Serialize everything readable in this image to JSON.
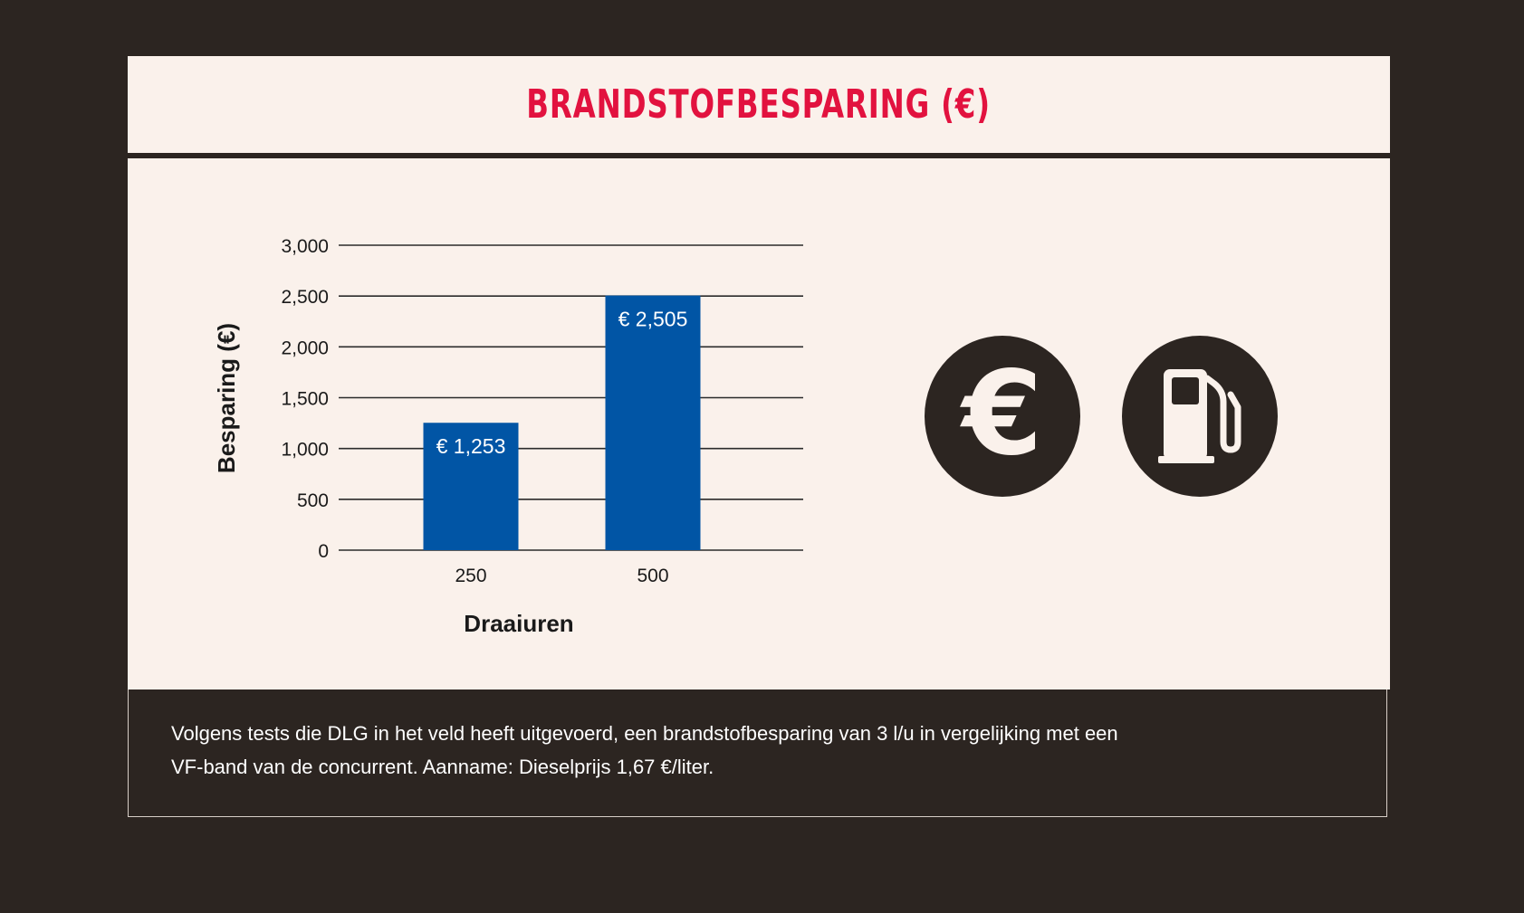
{
  "header": {
    "title": "BRANDSTOFBESPARING (€)"
  },
  "chart_data": {
    "type": "bar",
    "title": "",
    "xlabel": "Draaiuren",
    "ylabel": "Besparing (€)",
    "categories": [
      "250",
      "500"
    ],
    "values": [
      1253,
      2505
    ],
    "data_labels": [
      "€ 1,253",
      "€ 2,505"
    ],
    "ylim": [
      0,
      3000
    ],
    "yticks": [
      0,
      500,
      1000,
      1500,
      2000,
      2500,
      3000
    ],
    "ytick_labels": [
      "0",
      "500",
      "1,000",
      "1,500",
      "2,000",
      "2,500",
      "3,000"
    ],
    "grid": true,
    "bar_color": "#0155a5"
  },
  "icons": [
    "euro-icon",
    "fuel-pump-icon"
  ],
  "footer": {
    "line1": "Volgens tests die DLG in het veld heeft uitgevoerd, een brandstofbesparing van 3 l/u in vergelijking met een",
    "line2": "VF-band van de concurrent. Aanname: Dieselprijs 1,67 €/liter."
  },
  "colors": {
    "background": "#2c2521",
    "panel": "#faf1eb",
    "title": "#e2123f",
    "bar": "#0155a5"
  }
}
